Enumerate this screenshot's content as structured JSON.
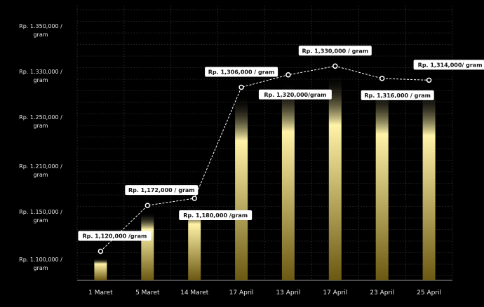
{
  "chart_data": {
    "type": "bar",
    "title": "",
    "xlabel": "",
    "ylabel": "",
    "categories": [
      "1 Maret",
      "5 Maret",
      "14 Maret",
      "17 April",
      "13 April",
      "17 April",
      "23 April",
      "25 April"
    ],
    "values": [
      1120000,
      1172000,
      1180000,
      1306000,
      1320000,
      1330000,
      1316000,
      1314000
    ],
    "data_labels": [
      "Rp. 1,120,000 /gram",
      "Rp. 1,172,000 / gram",
      "Rp. 1,180,000 /gram",
      "Rp. 1,306,000 / gram",
      "Rp. 1,320,000/gram",
      "Rp. 1,330,000 / gram",
      "Rp. 1,316,000 / gram",
      "Rp. 1,314,000/ gram"
    ],
    "ytick_labels": [
      [
        "Rp. 1.350,000 /",
        "gram"
      ],
      [
        "Rp. 1.330,000 /",
        "gram"
      ],
      [
        "Rp. 1.250,000 /",
        "gram"
      ],
      [
        "Rp. 1.210,000 /",
        "gram"
      ],
      [
        "Rp. 1.150,000 /",
        "gram"
      ],
      [
        "Rp. 1.100,000 /",
        "gram"
      ]
    ],
    "grid": true,
    "colors": {
      "background": "#000000",
      "bar_top": "#fff3a8",
      "bar_bottom": "#6b5812",
      "line": "#ffffff",
      "label_bg": "#ffffff",
      "grid": "#3a3a3a"
    }
  }
}
